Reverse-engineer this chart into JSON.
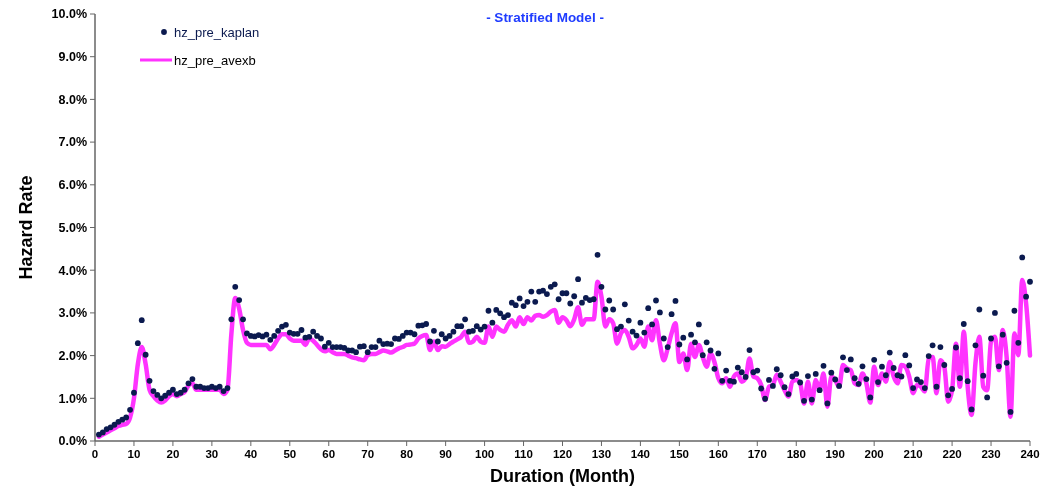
{
  "chart_data": {
    "type": "line",
    "title": "- Stratified Model -",
    "xlabel": "Duration (Month)",
    "ylabel": "Hazard Rate",
    "x": [
      1,
      2,
      3,
      4,
      5,
      6,
      7,
      8,
      9,
      10,
      11,
      12,
      13,
      14,
      15,
      16,
      17,
      18,
      19,
      20,
      21,
      22,
      23,
      24,
      25,
      26,
      27,
      28,
      29,
      30,
      31,
      32,
      33,
      34,
      35,
      36,
      37,
      38,
      39,
      40,
      41,
      42,
      43,
      44,
      45,
      46,
      47,
      48,
      49,
      50,
      51,
      52,
      53,
      54,
      55,
      56,
      57,
      58,
      59,
      60,
      61,
      62,
      63,
      64,
      65,
      66,
      67,
      68,
      69,
      70,
      71,
      72,
      73,
      74,
      75,
      76,
      77,
      78,
      79,
      80,
      81,
      82,
      83,
      84,
      85,
      86,
      87,
      88,
      89,
      90,
      91,
      92,
      93,
      94,
      95,
      96,
      97,
      98,
      99,
      100,
      101,
      102,
      103,
      104,
      105,
      106,
      107,
      108,
      109,
      110,
      111,
      112,
      113,
      114,
      115,
      116,
      117,
      118,
      119,
      120,
      121,
      122,
      123,
      124,
      125,
      126,
      127,
      128,
      129,
      130,
      131,
      132,
      133,
      134,
      135,
      136,
      137,
      138,
      139,
      140,
      141,
      142,
      143,
      144,
      145,
      146,
      147,
      148,
      149,
      150,
      151,
      152,
      153,
      154,
      155,
      156,
      157,
      158,
      159,
      160,
      161,
      162,
      163,
      164,
      165,
      166,
      167,
      168,
      169,
      170,
      171,
      172,
      173,
      174,
      175,
      176,
      177,
      178,
      179,
      180,
      181,
      182,
      183,
      184,
      185,
      186,
      187,
      188,
      189,
      190,
      191,
      192,
      193,
      194,
      195,
      196,
      197,
      198,
      199,
      200,
      201,
      202,
      203,
      204,
      205,
      206,
      207,
      208,
      209,
      210,
      211,
      212,
      213,
      214,
      215,
      216,
      217,
      218,
      219,
      220,
      221,
      222,
      223,
      224,
      225,
      226,
      227,
      228,
      229,
      230,
      231,
      232,
      233,
      234,
      235,
      236,
      237,
      238,
      239,
      240
    ],
    "series": [
      {
        "name": "hz_pre_kaplan",
        "type": "scatter",
        "marker": "circle",
        "color": "#0b1a4f",
        "values": [
          0.15,
          0.2,
          0.28,
          0.32,
          0.38,
          0.45,
          0.5,
          0.55,
          0.73,
          1.13,
          2.29,
          2.83,
          2.02,
          1.41,
          1.17,
          1.08,
          1.0,
          1.06,
          1.13,
          1.2,
          1.1,
          1.13,
          1.2,
          1.35,
          1.45,
          1.27,
          1.27,
          1.24,
          1.24,
          1.27,
          1.24,
          1.27,
          1.17,
          1.24,
          2.85,
          3.61,
          3.3,
          2.85,
          2.52,
          2.46,
          2.45,
          2.48,
          2.45,
          2.49,
          2.37,
          2.46,
          2.58,
          2.68,
          2.72,
          2.54,
          2.51,
          2.51,
          2.6,
          2.42,
          2.44,
          2.56,
          2.46,
          2.4,
          2.21,
          2.3,
          2.2,
          2.2,
          2.2,
          2.18,
          2.12,
          2.12,
          2.08,
          2.21,
          2.22,
          2.08,
          2.2,
          2.2,
          2.35,
          2.27,
          2.28,
          2.27,
          2.4,
          2.39,
          2.46,
          2.54,
          2.54,
          2.5,
          2.7,
          2.71,
          2.74,
          2.33,
          2.58,
          2.33,
          2.5,
          2.4,
          2.46,
          2.56,
          2.69,
          2.69,
          2.85,
          2.56,
          2.58,
          2.69,
          2.61,
          2.68,
          3.05,
          2.77,
          3.07,
          2.99,
          2.9,
          2.95,
          3.24,
          3.18,
          3.34,
          3.16,
          3.26,
          3.5,
          3.26,
          3.5,
          3.52,
          3.44,
          3.61,
          3.67,
          3.32,
          3.46,
          3.46,
          3.22,
          3.39,
          3.79,
          3.24,
          3.35,
          3.3,
          3.32,
          4.36,
          3.61,
          3.08,
          3.29,
          3.08,
          2.62,
          2.68,
          3.2,
          2.82,
          2.56,
          2.47,
          2.77,
          2.54,
          3.11,
          2.73,
          3.29,
          3.01,
          2.4,
          2.2,
          2.97,
          3.28,
          2.26,
          2.42,
          1.91,
          2.49,
          2.31,
          2.73,
          2.01,
          2.31,
          2.12,
          1.69,
          2.05,
          1.41,
          1.65,
          1.41,
          1.39,
          1.72,
          1.61,
          1.5,
          2.13,
          1.61,
          1.65,
          1.23,
          0.99,
          1.43,
          1.29,
          1.68,
          1.54,
          1.26,
          1.1,
          1.51,
          1.57,
          1.37,
          0.94,
          1.52,
          0.97,
          1.57,
          1.19,
          1.76,
          0.88,
          1.6,
          1.44,
          1.29,
          1.96,
          1.66,
          1.91,
          1.47,
          1.34,
          1.75,
          1.45,
          1.02,
          1.9,
          1.38,
          1.74,
          1.54,
          2.07,
          1.71,
          1.54,
          1.51,
          2.01,
          1.77,
          1.24,
          1.44,
          1.38,
          1.24,
          1.99,
          2.24,
          1.27,
          2.2,
          1.78,
          1.07,
          1.22,
          2.19,
          1.47,
          2.74,
          1.4,
          0.74,
          2.24,
          3.08,
          1.53,
          1.02,
          2.4,
          3.0,
          1.75,
          2.49,
          1.83,
          0.68,
          3.05,
          2.3,
          4.3,
          3.38,
          3.73
        ]
      },
      {
        "name": "hz_pre_avexb",
        "line_style": "solid",
        "color": "#ff33ff",
        "values": [
          0.1,
          0.15,
          0.2,
          0.25,
          0.3,
          0.35,
          0.38,
          0.4,
          0.55,
          1.0,
          1.8,
          2.2,
          1.8,
          1.2,
          1.05,
          0.95,
          0.9,
          0.95,
          1.05,
          1.1,
          1.05,
          1.1,
          1.15,
          1.3,
          1.35,
          1.2,
          1.2,
          1.2,
          1.2,
          1.2,
          1.2,
          1.2,
          1.1,
          1.2,
          2.5,
          3.35,
          3.1,
          2.6,
          2.3,
          2.25,
          2.25,
          2.25,
          2.25,
          2.25,
          2.15,
          2.25,
          2.4,
          2.5,
          2.5,
          2.4,
          2.35,
          2.35,
          2.35,
          2.25,
          2.4,
          2.35,
          2.25,
          2.15,
          2.1,
          2.13,
          2.08,
          2.04,
          2.04,
          2.04,
          2.0,
          1.96,
          1.94,
          1.91,
          1.89,
          2.01,
          2.04,
          2.04,
          2.08,
          2.12,
          2.1,
          2.07,
          2.12,
          2.17,
          2.2,
          2.25,
          2.26,
          2.28,
          2.4,
          2.46,
          2.48,
          2.13,
          2.33,
          2.13,
          2.22,
          2.21,
          2.27,
          2.33,
          2.38,
          2.44,
          2.56,
          2.3,
          2.33,
          2.44,
          2.33,
          2.3,
          2.68,
          2.44,
          2.68,
          2.6,
          2.56,
          2.72,
          2.83,
          2.68,
          2.9,
          2.74,
          2.9,
          2.82,
          2.93,
          2.95,
          2.91,
          2.95,
          3.03,
          3.07,
          2.77,
          2.9,
          2.83,
          2.69,
          2.85,
          3.13,
          2.72,
          2.85,
          2.85,
          2.85,
          3.73,
          3.38,
          2.68,
          2.85,
          2.76,
          2.28,
          2.52,
          2.6,
          2.44,
          2.17,
          2.25,
          2.4,
          2.21,
          2.68,
          2.36,
          2.83,
          2.28,
          1.89,
          2.17,
          2.52,
          2.76,
          1.85,
          2.05,
          1.66,
          2.28,
          1.97,
          2.25,
          1.97,
          1.74,
          2.05,
          1.85,
          1.47,
          1.35,
          1.47,
          1.27,
          1.51,
          1.58,
          1.39,
          1.47,
          1.93,
          1.51,
          1.47,
          1.31,
          0.96,
          1.27,
          1.31,
          1.55,
          1.39,
          1.19,
          1.04,
          1.39,
          1.43,
          1.35,
          0.88,
          1.39,
          0.88,
          1.43,
          1.19,
          1.58,
          0.8,
          1.51,
          1.43,
          1.27,
          1.78,
          1.7,
          1.66,
          1.35,
          1.31,
          1.58,
          1.35,
          0.9,
          1.74,
          1.31,
          1.58,
          1.39,
          1.85,
          1.51,
          1.35,
          1.78,
          1.74,
          1.51,
          1.12,
          1.31,
          1.27,
          1.16,
          1.93,
          1.97,
          1.12,
          1.89,
          1.74,
          0.92,
          1.19,
          2.28,
          1.27,
          2.56,
          1.27,
          0.61,
          1.82,
          2.44,
          1.27,
          1.19,
          2.33,
          2.44,
          1.66,
          2.6,
          1.97,
          0.57,
          2.52,
          2.01,
          3.77,
          3.22,
          2.0
        ]
      }
    ],
    "xlim": [
      0,
      240
    ],
    "xticks": [
      0,
      10,
      20,
      30,
      40,
      50,
      60,
      70,
      80,
      90,
      100,
      110,
      120,
      130,
      140,
      150,
      160,
      170,
      180,
      190,
      200,
      210,
      220,
      230,
      240
    ],
    "ylim": [
      0,
      10
    ],
    "yticks": [
      {
        "value": 0,
        "label": "0.0%"
      },
      {
        "value": 1,
        "label": "1.0%"
      },
      {
        "value": 2,
        "label": "2.0%"
      },
      {
        "value": 3,
        "label": "3.0%"
      },
      {
        "value": 4,
        "label": "4.0%"
      },
      {
        "value": 5,
        "label": "5.0%"
      },
      {
        "value": 6,
        "label": "6.0%"
      },
      {
        "value": 7,
        "label": "7.0%"
      },
      {
        "value": 8,
        "label": "8.0%"
      },
      {
        "value": 9,
        "label": "9.0%"
      },
      {
        "value": 10,
        "label": "10.0%"
      }
    ],
    "grid": false,
    "legend": "top left"
  }
}
